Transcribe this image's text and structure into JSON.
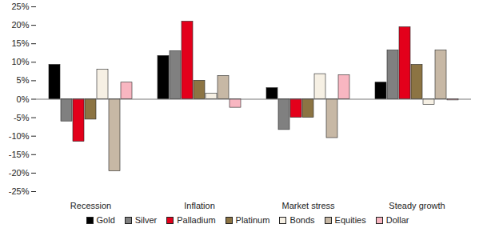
{
  "chart_data": {
    "type": "bar",
    "categories": [
      "Recession",
      "Inflation",
      "Market stress",
      "Steady growth"
    ],
    "series": [
      {
        "name": "Gold",
        "color": "#000000",
        "values": [
          9.3,
          11.7,
          3.0,
          4.5
        ]
      },
      {
        "name": "Silver",
        "color": "#808080",
        "values": [
          -6.0,
          13.0,
          -8.3,
          13.2
        ]
      },
      {
        "name": "Palladium",
        "color": "#e3001b",
        "values": [
          -11.5,
          21.0,
          -5.0,
          19.5
        ]
      },
      {
        "name": "Platinum",
        "color": "#8c7443",
        "values": [
          -5.5,
          5.0,
          -5.0,
          9.3
        ]
      },
      {
        "name": "Bonds",
        "color": "#f6f0e4",
        "values": [
          8.0,
          1.5,
          6.8,
          -1.5
        ]
      },
      {
        "name": "Equities",
        "color": "#c7b8a5",
        "values": [
          -19.5,
          6.3,
          -10.5,
          13.2
        ]
      },
      {
        "name": "Dollar",
        "color": "#f8b6c1",
        "values": [
          4.5,
          -2.3,
          6.5,
          -0.3
        ]
      }
    ],
    "ylim": [
      -25,
      25
    ],
    "yticks": [
      {
        "value": -25,
        "label": "-25%"
      },
      {
        "value": -20,
        "label": "-20%"
      },
      {
        "value": -15,
        "label": "-15%"
      },
      {
        "value": -10,
        "label": "-10%"
      },
      {
        "value": -5,
        "label": "-5%"
      },
      {
        "value": 0,
        "label": "0%"
      },
      {
        "value": 5,
        "label": "5%"
      },
      {
        "value": 10,
        "label": "10%"
      },
      {
        "value": 15,
        "label": "15%"
      },
      {
        "value": 20,
        "label": "20%"
      },
      {
        "value": 25,
        "label": "25%"
      }
    ],
    "grid": false,
    "legend": "bottom"
  }
}
